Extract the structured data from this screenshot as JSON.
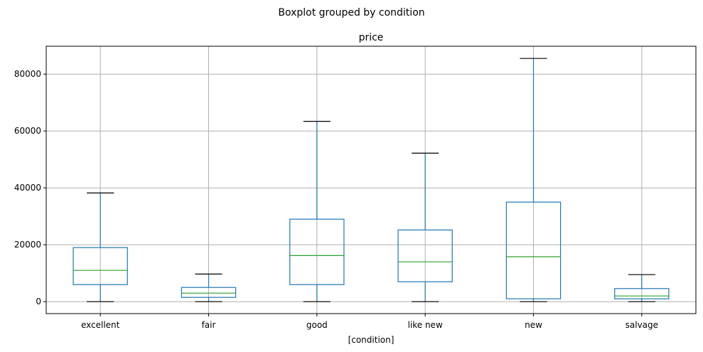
{
  "chart_data": {
    "type": "boxplot",
    "suptitle": "Boxplot grouped by condition",
    "title": "price",
    "xlabel": "[condition]",
    "ylabel": "",
    "categories": [
      "excellent",
      "fair",
      "good",
      "like new",
      "new",
      "salvage"
    ],
    "boxes": [
      {
        "whisker_low": 0,
        "q1": 6000,
        "median": 11000,
        "q3": 19000,
        "whisker_high": 38200
      },
      {
        "whisker_low": 0,
        "q1": 1500,
        "median": 3000,
        "q3": 5000,
        "whisker_high": 9700
      },
      {
        "whisker_low": 0,
        "q1": 6000,
        "median": 16200,
        "q3": 29000,
        "whisker_high": 63400
      },
      {
        "whisker_low": 0,
        "q1": 7000,
        "median": 14000,
        "q3": 25200,
        "whisker_high": 52200
      },
      {
        "whisker_low": 0,
        "q1": 1000,
        "median": 15800,
        "q3": 35000,
        "whisker_high": 85500
      },
      {
        "whisker_low": 0,
        "q1": 1000,
        "median": 2000,
        "q3": 4600,
        "whisker_high": 9500
      }
    ],
    "ylim": [
      -4200,
      89800
    ],
    "yticks": [
      0,
      20000,
      40000,
      60000,
      80000
    ],
    "ytick_labels": [
      "0",
      "20000",
      "40000",
      "60000",
      "80000"
    ],
    "grid": true,
    "colors": {
      "box": "#1f77b4",
      "median": "#2ca02c",
      "cap": "#000000",
      "grid": "#b0b0b0"
    }
  }
}
